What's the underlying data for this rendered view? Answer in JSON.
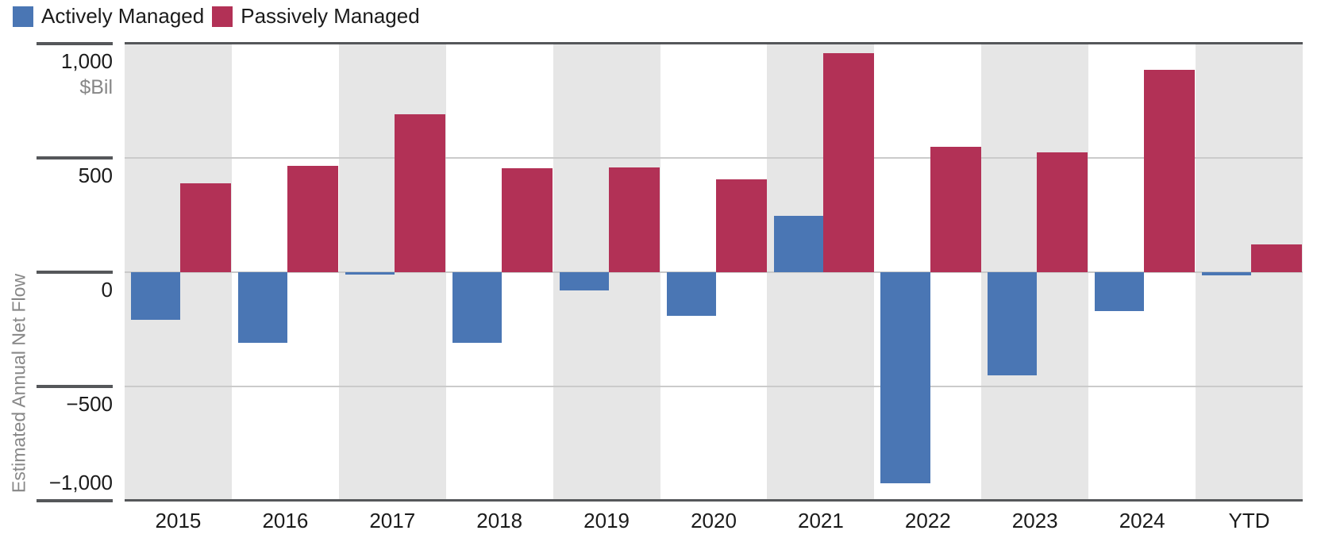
{
  "chart_data": {
    "type": "bar",
    "title": "",
    "unit": "$Bil",
    "ylabel": "Estimated Annual Net Flow",
    "categories": [
      "2015",
      "2016",
      "2017",
      "2018",
      "2019",
      "2020",
      "2021",
      "2022",
      "2023",
      "2024",
      "YTD"
    ],
    "series": [
      {
        "name": "Actively Managed",
        "color": "#4A76B4",
        "values": [
          -210,
          -310,
          -10,
          -310,
          -80,
          -190,
          245,
          -925,
          -450,
          -170,
          -15
        ]
      },
      {
        "name": "Passively Managed",
        "color": "#B23156",
        "values": [
          390,
          465,
          690,
          455,
          460,
          405,
          960,
          550,
          525,
          885,
          120
        ]
      }
    ],
    "ylim": [
      -1000,
      1000
    ],
    "y_ticks": [
      {
        "label": "1,000",
        "value": 1000
      },
      {
        "label": "500",
        "value": 500
      },
      {
        "label": "0",
        "value": 0
      },
      {
        "label": "−500",
        "value": -500
      },
      {
        "label": "−1,000",
        "value": -1000
      }
    ],
    "gridlines": [
      500,
      0,
      -500
    ],
    "grid": true,
    "legend_position": "top-left",
    "band_fill": "alternate-columns",
    "colors": {
      "band": "#E6E6E6",
      "gridline": "#CBCBCB",
      "zero_line": "#C9C9C9",
      "axis_border": "#55575A",
      "tick_label": "#1B1B1B",
      "muted_text": "#878787",
      "background": "#FFFFFF"
    }
  }
}
